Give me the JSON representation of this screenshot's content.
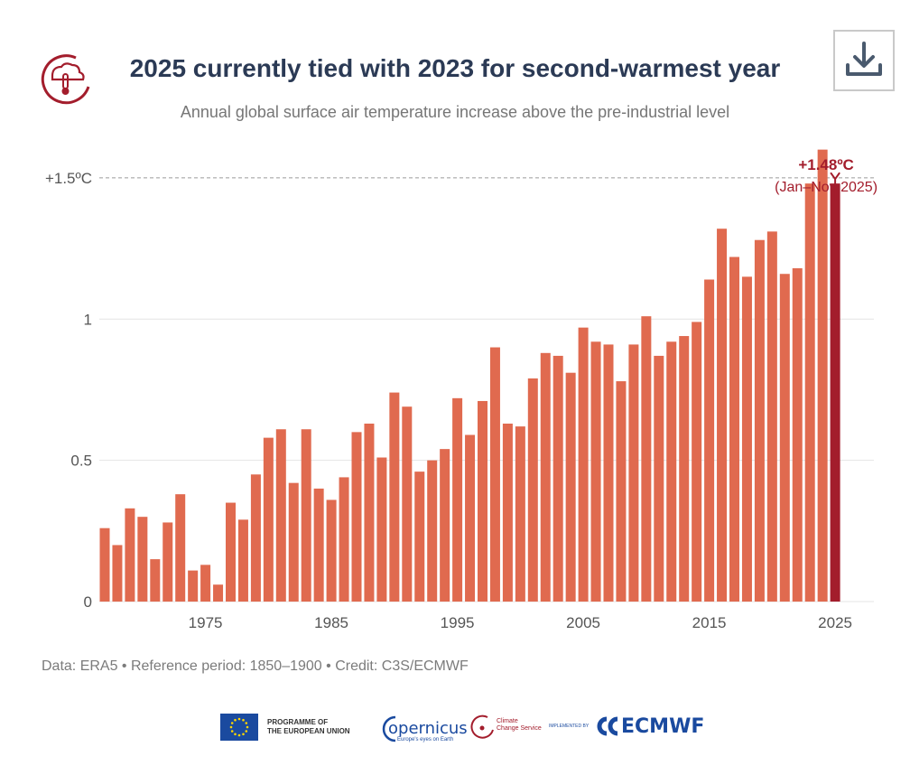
{
  "header": {
    "title": "2025 currently tied with 2023 for second-warmest year",
    "subtitle": "Annual global surface air temperature increase above the pre-industrial level"
  },
  "chart_data": {
    "type": "bar",
    "title": "2025 currently tied with 2023 for second-warmest year",
    "subtitle": "Annual global surface air temperature increase above the pre-industrial level",
    "xlabel": "",
    "ylabel": "",
    "x": [
      1967,
      1968,
      1969,
      1970,
      1971,
      1972,
      1973,
      1974,
      1975,
      1976,
      1977,
      1978,
      1979,
      1980,
      1981,
      1982,
      1983,
      1984,
      1985,
      1986,
      1987,
      1988,
      1989,
      1990,
      1991,
      1992,
      1993,
      1994,
      1995,
      1996,
      1997,
      1998,
      1999,
      2000,
      2001,
      2002,
      2003,
      2004,
      2005,
      2006,
      2007,
      2008,
      2009,
      2010,
      2011,
      2012,
      2013,
      2014,
      2015,
      2016,
      2017,
      2018,
      2019,
      2020,
      2021,
      2022,
      2023,
      2024,
      2025
    ],
    "values": [
      0.26,
      0.2,
      0.33,
      0.3,
      0.15,
      0.28,
      0.38,
      0.11,
      0.13,
      0.06,
      0.35,
      0.29,
      0.45,
      0.58,
      0.61,
      0.42,
      0.61,
      0.4,
      0.36,
      0.44,
      0.6,
      0.63,
      0.51,
      0.74,
      0.69,
      0.46,
      0.5,
      0.54,
      0.72,
      0.59,
      0.71,
      0.9,
      0.63,
      0.62,
      0.79,
      0.88,
      0.87,
      0.81,
      0.97,
      0.92,
      0.91,
      0.78,
      0.91,
      1.01,
      0.87,
      0.92,
      0.94,
      0.99,
      1.14,
      1.32,
      1.22,
      1.15,
      1.28,
      1.31,
      1.16,
      1.18,
      1.48,
      1.6,
      1.48
    ],
    "highlight": {
      "x": 2025,
      "color": "#a31d2c"
    },
    "bar_color": "#e06a4f",
    "xticks": [
      1975,
      1985,
      1995,
      2005,
      2015,
      2025
    ],
    "xtick_labels": [
      "1975",
      "1985",
      "1995",
      "2005",
      "2015",
      "2025"
    ],
    "yticks": [
      0,
      0.5,
      1,
      1.5
    ],
    "ytick_labels": [
      "0",
      "0.5",
      "1",
      "+1.5ºC"
    ],
    "ylim": [
      0,
      1.65
    ],
    "reference_line": {
      "y": 1.5,
      "style": "dashed"
    },
    "annotation": {
      "value": "+1.48ºC",
      "note": "(Jan–Nov 2025)",
      "x": 2025
    },
    "grid": "horizontal"
  },
  "footer": {
    "credit": "Data: ERA5 • Reference period: 1850–1900 • Credit: C3S/ECMWF",
    "eu_line1": "PROGRAMME OF",
    "eu_line2": "THE EUROPEAN UNION",
    "copernicus": "opernicus",
    "copernicus_tagline": "Europe's eyes on Earth",
    "c3s_line1": "Climate",
    "c3s_line2": "Change Service",
    "implemented_by": "IMPLEMENTED BY",
    "ecmwf": "ECMWF"
  },
  "icons": {
    "c3s_logo": "thermometer-cloud-icon",
    "download": "download-icon"
  },
  "colors": {
    "title": "#2b3a55",
    "bars": "#e06a4f",
    "highlight": "#a31d2c"
  }
}
